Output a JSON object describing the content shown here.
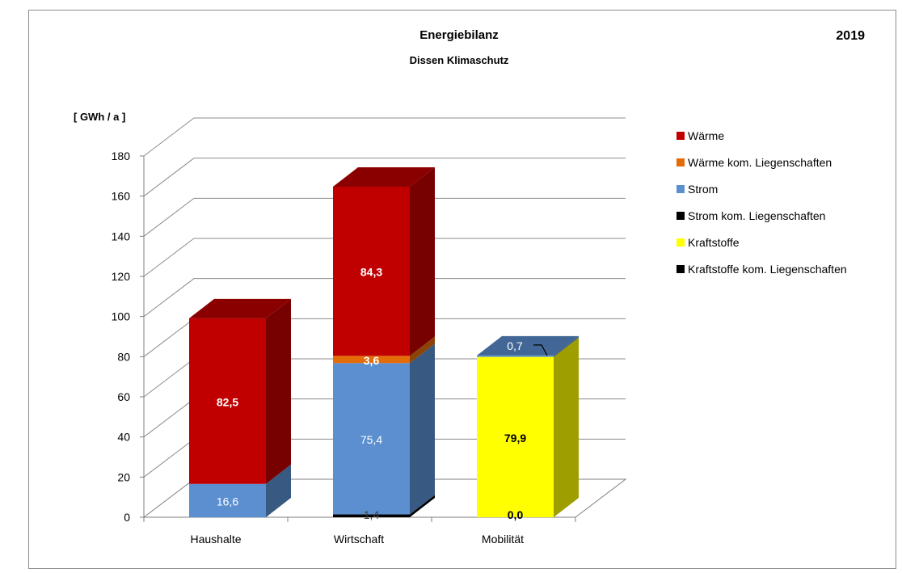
{
  "chart_data": {
    "type": "bar",
    "stacked": true,
    "three_d": true,
    "title": "Energiebilanz",
    "subtitle": "Dissen Klimaschutz",
    "year": "2019",
    "ylabel": "[ GWh / a ]",
    "ylim": [
      0,
      180
    ],
    "yticks": [
      0,
      20,
      40,
      60,
      80,
      100,
      120,
      140,
      160,
      180
    ],
    "grid": true,
    "legend_position": "right",
    "categories": [
      "Haushalte",
      "Wirtschaft",
      "Mobilität"
    ],
    "series": [
      {
        "name": "Wärme",
        "color": "#c00000",
        "values": [
          82.5,
          84.3,
          0
        ]
      },
      {
        "name": "Wärme kom. Liegenschaften",
        "color": "#e36c09",
        "values": [
          0,
          3.6,
          0
        ]
      },
      {
        "name": "Strom",
        "color": "#5b8fd0",
        "values": [
          16.6,
          75.4,
          0.7
        ]
      },
      {
        "name": "Strom kom. Liegenschaften",
        "color": "#000000",
        "values": [
          0,
          1.4,
          0
        ]
      },
      {
        "name": "Kraftstoffe",
        "color": "#ffff00",
        "values": [
          0,
          0,
          79.9
        ]
      },
      {
        "name": "Kraftstoffe kom. Liegenschaften",
        "color": "#000000",
        "values": [
          0,
          0,
          0.0
        ]
      }
    ],
    "data_labels": [
      {
        "category": "Haushalte",
        "series": "Wärme",
        "text": "82,5"
      },
      {
        "category": "Haushalte",
        "series": "Strom",
        "text": "16,6"
      },
      {
        "category": "Wirtschaft",
        "series": "Wärme",
        "text": "84,3"
      },
      {
        "category": "Wirtschaft",
        "series": "Wärme kom. Liegenschaften",
        "text": "3,6"
      },
      {
        "category": "Wirtschaft",
        "series": "Strom",
        "text": "75,4"
      },
      {
        "category": "Wirtschaft",
        "series": "Strom kom. Liegenschaften",
        "text": "1,4"
      },
      {
        "category": "Mobilität",
        "series": "Strom",
        "text": "0,7"
      },
      {
        "category": "Mobilität",
        "series": "Kraftstoffe",
        "text": "79,9"
      },
      {
        "category": "Mobilität",
        "series": "Kraftstoffe kom. Liegenschaften",
        "text": "0,0"
      }
    ]
  }
}
